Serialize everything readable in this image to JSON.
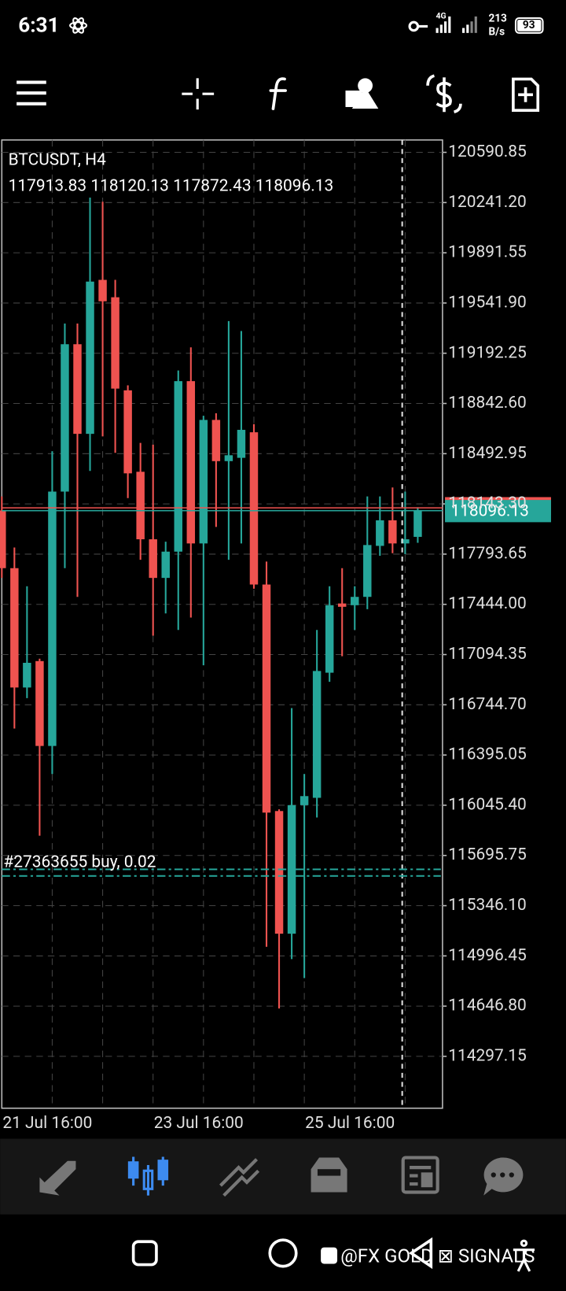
{
  "status_bar": {
    "time": "6:31",
    "network": "4G",
    "speed": "213",
    "speed_unit": "B/s",
    "battery": "93"
  },
  "chart_data": {
    "type": "candlestick",
    "title": "BTCUSDT, H4",
    "categories": [
      "21 Jul 16:00",
      null,
      null,
      null,
      null,
      null,
      null,
      null,
      null,
      null,
      null,
      null,
      "23 Jul 16:00",
      null,
      null,
      null,
      null,
      null,
      null,
      null,
      null,
      null,
      null,
      null,
      "25 Jul 16:00",
      null,
      null,
      null,
      null,
      null,
      null,
      null,
      null,
      null
    ],
    "open": [
      118098,
      117696,
      116865,
      117049,
      116458,
      118229,
      119255,
      118631,
      119703,
      119582,
      118934,
      118367,
      117897,
      117628,
      117811,
      118998,
      117868,
      118728,
      118441,
      118464,
      118642,
      117582,
      116005,
      115151,
      116046,
      116097,
      116968,
      117450,
      117438,
      117496,
      117851,
      118029,
      117868,
      117913.83
    ],
    "high": [
      118195,
      117840,
      117570,
      117066,
      118510,
      119399,
      119399,
      120276,
      120247,
      119703,
      118969,
      118568,
      118556,
      117880,
      119072,
      119233,
      118757,
      118774,
      119416,
      119347,
      118699,
      117742,
      116017,
      116722,
      116263,
      117266,
      117570,
      117696,
      117570,
      118195,
      118195,
      118258,
      118229,
      118120.13
    ],
    "low": [
      117628,
      116579,
      116791,
      115833,
      116263,
      117696,
      117496,
      118373,
      118613,
      118499,
      118184,
      117754,
      117226,
      117381,
      117266,
      117352,
      117020,
      117983,
      117754,
      117868,
      117553,
      115060,
      114630,
      114974,
      114842,
      115960,
      116905,
      117083,
      117266,
      117410,
      117782,
      117800,
      117794,
      117872.43
    ],
    "close": [
      117696,
      116865,
      117037,
      116458,
      118229,
      119255,
      118631,
      119691,
      119554,
      118946,
      118356,
      117897,
      117628,
      117811,
      118998,
      117868,
      118728,
      118441,
      118482,
      118659,
      117582,
      115994,
      115151,
      116046,
      116109,
      116980,
      117438,
      117427,
      117496,
      117857,
      118029,
      117868,
      117897,
      118096.13
    ],
    "up_color": "#26a69a",
    "down_color": "#ef5350",
    "ylim": [
      113936,
      120677
    ],
    "yticks": [
      120590.85,
      {
        "value": 120241.2,
        "label": "120241.20"
      },
      119891.55,
      {
        "value": 119541.9,
        "label": "119541.90"
      },
      119192.25,
      {
        "value": 118842.6,
        "label": "118842.60"
      },
      118492.95,
      {
        "value": 118143.3,
        "label": "118143.30"
      },
      117793.65,
      {
        "value": 117444,
        "label": "117444.00"
      },
      117094.35,
      {
        "value": 116744.7,
        "label": "116744.70"
      },
      116395.05,
      {
        "value": 116045.4,
        "label": "116045.40"
      },
      115695.75,
      {
        "value": 115346.1,
        "label": "115346.10"
      },
      114996.45,
      {
        "value": 114646.8,
        "label": "114646.80"
      },
      114297.15
    ],
    "grid": true,
    "ask": 118116,
    "ask_color": "#ef5350",
    "trade": {
      "label": "#27363655 buy, 0.02",
      "prices": [
        115599,
        115553
      ],
      "color": "#26a69a"
    }
  },
  "watermark": "@FX GOLD ⊠ SIGNALS"
}
